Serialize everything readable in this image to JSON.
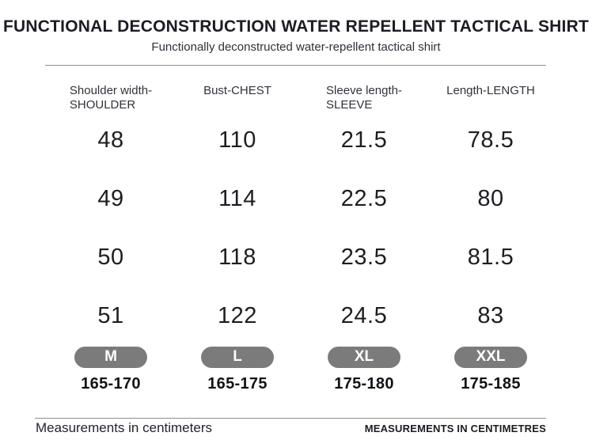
{
  "header": {
    "title": "FUNCTIONAL DECONSTRUCTION WATER REPELLENT TACTICAL SHIRT",
    "subtitle": "Functionally deconstructed water-repellent tactical shirt"
  },
  "size_table": {
    "columns": [
      "Shoulder width-\nSHOULDER",
      "Bust-CHEST",
      "Sleeve length-\nSLEEVE",
      "Length-LENGTH"
    ],
    "rows": [
      [
        "48",
        "110",
        "21.5",
        "78.5"
      ],
      [
        "49",
        "114",
        "22.5",
        "80"
      ],
      [
        "50",
        "118",
        "23.5",
        "81.5"
      ],
      [
        "51",
        "122",
        "24.5",
        "83"
      ]
    ],
    "sizes": [
      "M",
      "L",
      "XL",
      "XXL"
    ],
    "height_ranges": [
      "165-170",
      "165-175",
      "175-180",
      "175-185"
    ]
  },
  "footer": {
    "left_note": "Measurements in centimeters",
    "right_note": "MEASUREMENTS IN CENTIMETRES"
  },
  "colors": {
    "size_badge_bg": "#7b7b7b",
    "size_badge_text": "#ffffff",
    "heading_text": "#1c1c24",
    "divider": "#8f8f8f"
  },
  "chart_data": {
    "type": "table",
    "title": "FUNCTIONAL DECONSTRUCTION WATER REPELLENT TACTICAL SHIRT",
    "columns": [
      "Shoulder width-SHOULDER",
      "Bust-CHEST",
      "Sleeve length-SLEEVE",
      "Length-LENGTH"
    ],
    "rows_by_size": [
      {
        "size": "M",
        "height_range": "165-170",
        "shoulder": 48,
        "chest": 110,
        "sleeve": 21.5,
        "length": 78.5
      },
      {
        "size": "L",
        "height_range": "165-175",
        "shoulder": 49,
        "chest": 114,
        "sleeve": 22.5,
        "length": 80
      },
      {
        "size": "XL",
        "height_range": "175-180",
        "shoulder": 50,
        "chest": 118,
        "sleeve": 23.5,
        "length": 81.5
      },
      {
        "size": "XXL",
        "height_range": "175-185",
        "shoulder": 51,
        "chest": 122,
        "sleeve": 24.5,
        "length": 83
      }
    ],
    "unit": "centimeters"
  }
}
